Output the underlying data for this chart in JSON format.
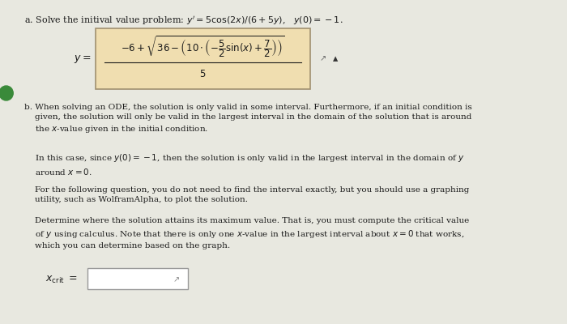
{
  "page_bg": "#d8d8d0",
  "content_bg": "#e8e8e0",
  "title_a": "a. Solve the initival value problem: $y' = 5\\cos(2x)/(6 + 5y)$,   $y(0) = -1$.",
  "formula_box_bg": "#f0deb0",
  "formula_box_border": "#a09070",
  "formula_numerator": "$-6 + \\sqrt{36 - \\left(10 \\cdot \\left(-\\dfrac{5}{2}\\sin(x) + \\dfrac{7}{2}\\right)\\right)}$",
  "formula_denominator": "$5$",
  "text_b1": "b. When solving an ODE, the solution is only valid in some interval. Furthermore, if an initial condition is\ngiven, the solution will only be valid in the largest interval in the domain of the solution that is around\nthe $x$-value given in the initial condition.",
  "text_b2": "In this case, since $y(0) = -1$, then the solution is only valid in the largest interval in the domain of $y$\naround $x = 0$.",
  "text_b3": "For the following question, you do not need to find the interval exactly, but you should use a graphing\nutility, such as WolframAlpha, to plot the solution.",
  "text_b4": "Determine where the solution attains its maximum value. That is, you must compute the critical value\nof $y$ using calculus. Note that there is only one $x$-value in the largest interval about $x = 0$ that works,\nwhich you can determine based on the graph.",
  "xcrit_label": "$x_{\\rm crit}$",
  "input_box_color": "#ffffff",
  "input_box_border": "#999999",
  "font_size_title": 8.0,
  "font_size_body": 7.5,
  "font_size_formula": 9.0,
  "text_color": "#1a1a1a",
  "left_circle_color": "#3a8a3a",
  "triangle_color": "#333333",
  "pencil_color": "#666666"
}
